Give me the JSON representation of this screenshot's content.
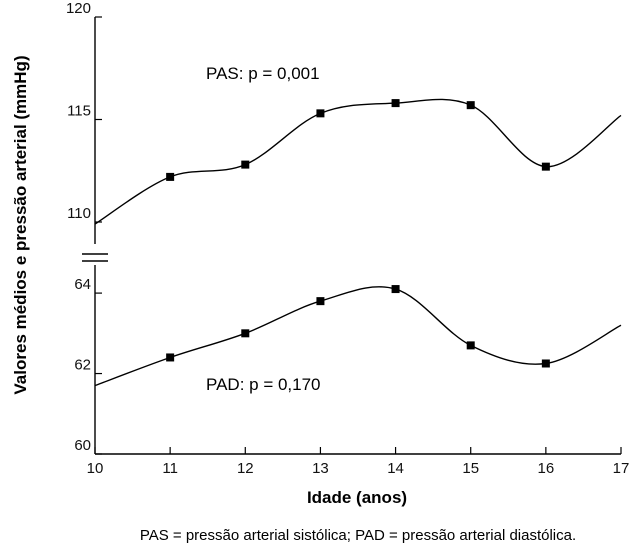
{
  "chart_data": {
    "type": "line",
    "xlabel": "Idade (anos)",
    "ylabel": "Valores médios e pressão arterial (mmHg)",
    "caption": "PAS = pressão arterial sistólica; PAD = pressão arterial diastólica.",
    "xlim": [
      10,
      17
    ],
    "x_ticks": [
      "10",
      "11",
      "12",
      "13",
      "14",
      "15",
      "16",
      "17"
    ],
    "axis_break": true,
    "grid": false,
    "panels": [
      {
        "ylim": [
          110,
          120
        ],
        "y_ticks": [
          110,
          115,
          120
        ],
        "annotation": "PAS: p = 0,001",
        "series": {
          "x": [
            11,
            12,
            13,
            14,
            15,
            16
          ],
          "values": [
            112.2,
            112.8,
            115.3,
            115.8,
            115.7,
            112.7
          ],
          "curve_start": [
            10,
            109.9
          ],
          "curve_end": [
            17,
            115.2
          ]
        }
      },
      {
        "ylim": [
          60,
          64.4
        ],
        "y_ticks": [
          60,
          62,
          64
        ],
        "annotation": "PAD: p = 0,170",
        "series": {
          "x": [
            11,
            12,
            13,
            14,
            15,
            16
          ],
          "values": [
            62.4,
            63.0,
            63.8,
            64.1,
            62.7,
            62.25
          ],
          "curve_start": [
            10,
            61.7
          ],
          "curve_end": [
            17,
            63.2
          ]
        }
      }
    ]
  }
}
